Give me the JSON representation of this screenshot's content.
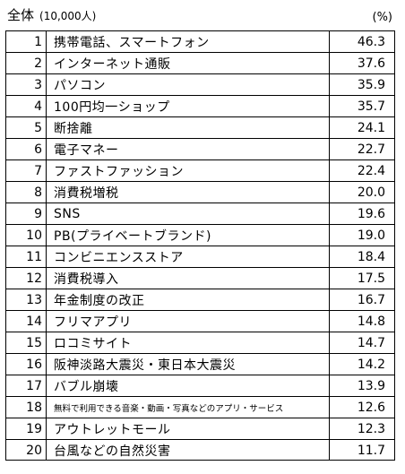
{
  "caption": {
    "title": "全体",
    "sample": "(10,000人)"
  },
  "unit": "(%)",
  "rows": [
    {
      "rank": "1",
      "item": "携帯電話、スマートフォン",
      "value": "46.3"
    },
    {
      "rank": "2",
      "item": "インターネット通販",
      "value": "37.6"
    },
    {
      "rank": "3",
      "item": "パソコン",
      "value": "35.9"
    },
    {
      "rank": "4",
      "item": "100円均一ショップ",
      "value": "35.7"
    },
    {
      "rank": "5",
      "item": "断捨離",
      "value": "24.1"
    },
    {
      "rank": "6",
      "item": "電子マネー",
      "value": "22.7"
    },
    {
      "rank": "7",
      "item": "ファストファッション",
      "value": "22.4"
    },
    {
      "rank": "8",
      "item": "消費税増税",
      "value": "20.0"
    },
    {
      "rank": "9",
      "item": "SNS",
      "value": "19.6"
    },
    {
      "rank": "10",
      "item": "PB(プライベートブランド)",
      "value": "19.0"
    },
    {
      "rank": "11",
      "item": "コンビニエンスストア",
      "value": "18.4"
    },
    {
      "rank": "12",
      "item": "消費税導入",
      "value": "17.5"
    },
    {
      "rank": "13",
      "item": "年金制度の改正",
      "value": "16.7"
    },
    {
      "rank": "14",
      "item": "フリマアプリ",
      "value": "14.8"
    },
    {
      "rank": "15",
      "item": "ロコミサイト",
      "value": "14.7"
    },
    {
      "rank": "16",
      "item": "阪神淡路大震災・東日本大震災",
      "value": "14.2"
    },
    {
      "rank": "17",
      "item": "バブル崩壊",
      "value": "13.9"
    },
    {
      "rank": "18",
      "item": "無料で利用できる音楽・動画・写真などのアプリ・サービス",
      "value": "12.6"
    },
    {
      "rank": "19",
      "item": "アウトレットモール",
      "value": "12.3"
    },
    {
      "rank": "20",
      "item": "台風などの自然災害",
      "value": "11.7"
    }
  ]
}
